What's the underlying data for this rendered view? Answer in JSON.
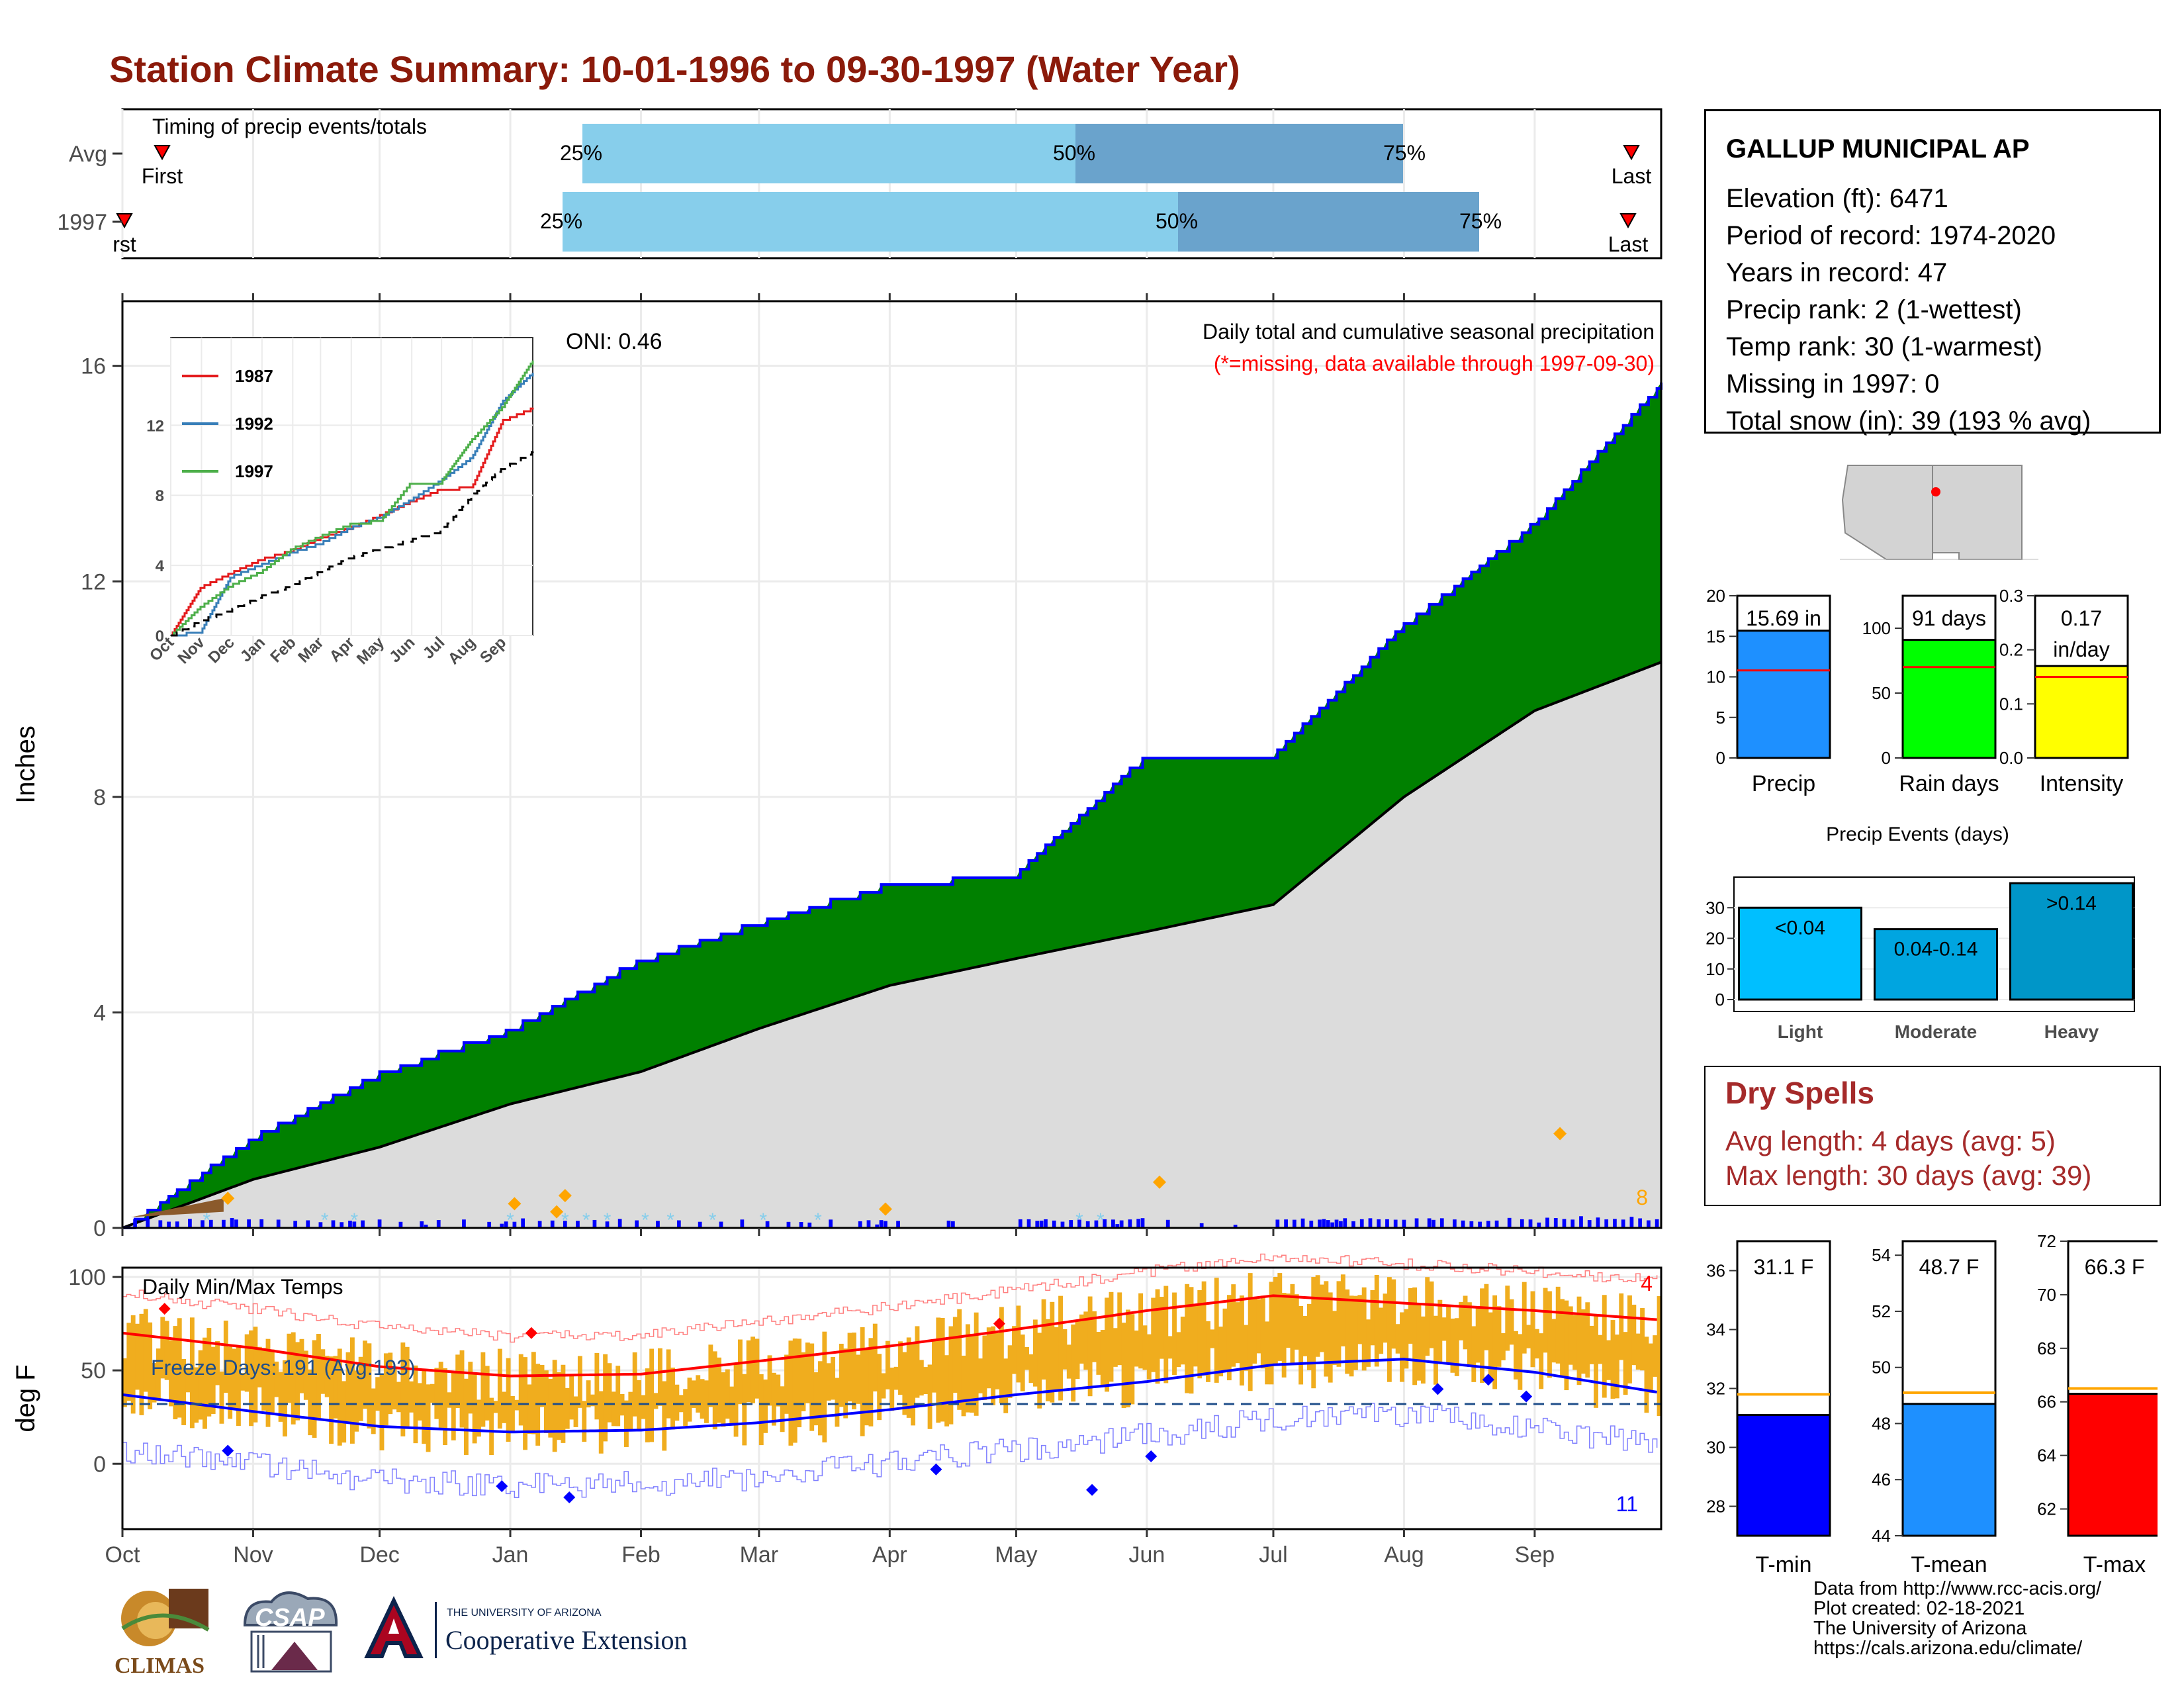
{
  "title": "Station Climate Summary: 10-01-1996 to 09-30-1997 (Water Year)",
  "colors": {
    "title": "#8b1a0a",
    "cum_fill": "#008000",
    "cum_line": "#0000ff",
    "avg_fill": "#dcdcdc",
    "bar_light": "#87ceeb",
    "bar_dark": "#6aa3cc",
    "precip_bar": "#1e90ff",
    "rain_bar": "#00ff00",
    "int_bar": "#ffff00",
    "tmin": "#0000ff",
    "tmean": "#1e90ff",
    "tmax": "#ff0000",
    "event_light": "#00bfff",
    "event_mod": "#00a5e0",
    "event_heavy": "#0096c8",
    "temp_bar": "#f0ad1e"
  },
  "timing": {
    "title": "Timing of precip events/totals",
    "rows": [
      {
        "label": "Avg",
        "first_label": "First",
        "last_label": "Last",
        "p25": "25%",
        "p50": "50%",
        "p75": "75%"
      },
      {
        "label": "1997",
        "first_label": "rst",
        "last_label": "Last",
        "p25": "25%",
        "p50": "50%",
        "p75": "75%"
      }
    ]
  },
  "main": {
    "ylabel": "Inches",
    "subtitle": "Daily total and cumulative seasonal precipitation",
    "missing_note": "(*=missing, data available through 1997-09-30)",
    "oni": "ONI: 0.46",
    "corner_count": "8",
    "yticks": [
      "0",
      "4",
      "8",
      "12",
      "16"
    ]
  },
  "inset": {
    "yticks": [
      "0",
      "4",
      "8",
      "12"
    ],
    "xticks": [
      "Oct",
      "Nov",
      "Dec",
      "Jan",
      "Feb",
      "Mar",
      "Apr",
      "May",
      "Jun",
      "Jul",
      "Aug",
      "Sep"
    ],
    "legend": [
      "1987",
      "1992",
      "1997"
    ]
  },
  "temps": {
    "ylabel": "deg F",
    "title": "Daily Min/Max Temps",
    "freeze": "Freeze Days: 191 (Avg:193)",
    "count_hot": "4",
    "count_cold": "11",
    "yticks": [
      "0",
      "50",
      "100"
    ]
  },
  "months": [
    "Oct",
    "Nov",
    "Dec",
    "Jan",
    "Feb",
    "Mar",
    "Apr",
    "May",
    "Jun",
    "Jul",
    "Aug",
    "Sep"
  ],
  "station": {
    "name": "GALLUP MUNICIPAL AP",
    "lines": [
      "Elevation (ft): 6471",
      "Period of record: 1974-2020",
      "Years in record: 47",
      "Precip rank: 2 (1-wettest)",
      "Temp rank: 30 (1-warmest)",
      "Missing in 1997: 0",
      "Total snow (in): 39 (193 % avg)"
    ]
  },
  "summary_bars": [
    {
      "label": "Precip",
      "value_text": "15.69 in",
      "value": 15.69,
      "avg": 10.8,
      "max": 20,
      "ticks": [
        "0",
        "5",
        "10",
        "15",
        "20"
      ]
    },
    {
      "label": "Rain days",
      "value_text": "91 days",
      "value": 91,
      "avg": 70,
      "max": 125,
      "ticks": [
        "0",
        "50",
        "100"
      ]
    },
    {
      "label": "Intensity",
      "value_text": "0.17 in/day",
      "value": 0.17,
      "avg": 0.15,
      "max": 0.3,
      "ticks": [
        "0.0",
        "0.1",
        "0.2",
        "0.3"
      ]
    }
  ],
  "events": {
    "title": "Precip Events (days)",
    "categories": [
      "Light",
      "Moderate",
      "Heavy"
    ],
    "labels": [
      "<0.04",
      "0.04-0.14",
      ">0.14"
    ],
    "values": [
      30,
      23,
      38
    ],
    "ticks": [
      "0",
      "10",
      "20",
      "30"
    ]
  },
  "dry_spells": {
    "title": "Dry Spells",
    "avg_line": "Avg length: 4 days (avg: 5)",
    "max_line": "Max length: 30 days (avg: 39)"
  },
  "temp_bars": [
    {
      "label": "T-min",
      "value_text": "31.1 F",
      "value": 31.1,
      "avg": 31.8,
      "min": 27,
      "max": 37,
      "ticks": [
        "28",
        "30",
        "32",
        "34",
        "36"
      ]
    },
    {
      "label": "T-mean",
      "value_text": "48.7 F",
      "value": 48.7,
      "avg": 49.1,
      "min": 44,
      "max": 54.5,
      "ticks": [
        "44",
        "46",
        "48",
        "50",
        "52",
        "54"
      ]
    },
    {
      "label": "T-max",
      "value_text": "66.3 F",
      "value": 66.3,
      "avg": 66.5,
      "min": 61,
      "max": 72,
      "ticks": [
        "62",
        "64",
        "66",
        "68",
        "70",
        "72"
      ]
    }
  ],
  "logos": {
    "climas": "CLIMAS",
    "csap": "CSAP",
    "ua_small": "THE UNIVERSITY OF ARIZONA",
    "ua_big": "Cooperative Extension"
  },
  "footer": [
    "Data from http://www.rcc-acis.org/",
    "Plot created: 02-18-2021",
    "The University of Arizona",
    "https://cals.arizona.edu/climate/"
  ],
  "chart_data": [
    {
      "type": "line",
      "title": "Daily total and cumulative seasonal precipitation",
      "ylabel": "Inches",
      "ylim": [
        0,
        17.2
      ],
      "x": [
        "Oct",
        "Nov",
        "Dec",
        "Jan",
        "Feb",
        "Mar",
        "Apr",
        "May",
        "Jun",
        "Jul",
        "Aug",
        "Sep",
        "Sep30"
      ],
      "series": [
        {
          "name": "1997",
          "values": [
            0,
            1.7,
            2.9,
            3.7,
            5.0,
            5.7,
            6.4,
            6.6,
            8.8,
            8.8,
            11.2,
            13.1,
            15.69
          ]
        },
        {
          "values": [
            0,
            0.9,
            1.5,
            2.3,
            2.9,
            3.7,
            4.5,
            5.0,
            5.5,
            6.0,
            8.0,
            9.6,
            10.5
          ]
        }
      ]
    },
    {
      "type": "line",
      "title": "",
      "ylim": [
        0,
        17
      ],
      "x": [
        "Oct",
        "Nov",
        "Dec",
        "Jan",
        "Feb",
        "Mar",
        "Apr",
        "May",
        "Jun",
        "Jul",
        "Aug",
        "Sep",
        "Sep30"
      ],
      "series": [
        {
          "name": "1987",
          "values": [
            0,
            2.8,
            3.6,
            4.4,
            4.9,
            5.6,
            6.2,
            6.9,
            7.7,
            8.4,
            8.5,
            12.3,
            13.0
          ]
        },
        {
          "name": "1992",
          "values": [
            0,
            0.3,
            3.4,
            4.1,
            4.8,
            5.3,
            6.2,
            6.8,
            7.8,
            8.9,
            10.2,
            13.4,
            15.0
          ]
        },
        {
          "name": "1997",
          "values": [
            0,
            1.7,
            2.9,
            3.7,
            5.0,
            5.7,
            6.4,
            6.6,
            8.8,
            8.8,
            11.2,
            13.1,
            15.69
          ]
        },
        {
          "values": [
            0,
            0.9,
            1.5,
            2.3,
            2.9,
            3.7,
            4.5,
            5.0,
            5.5,
            6.0,
            8.0,
            9.6,
            10.5
          ]
        }
      ]
    },
    {
      "type": "line",
      "title": "Daily Min/Max Temps",
      "ylabel": "deg F",
      "ylim": [
        -35,
        105
      ],
      "x": [
        "Oct",
        "Nov",
        "Dec",
        "Jan",
        "Feb",
        "Mar",
        "Apr",
        "May",
        "Jun",
        "Jul",
        "Aug",
        "Sep",
        "Sep30"
      ],
      "series": [
        {
          "values": [
            70,
            62,
            52,
            47,
            48,
            55,
            63,
            72,
            82,
            90,
            86,
            82,
            77
          ]
        },
        {
          "values": [
            37,
            28,
            20,
            17,
            18,
            22,
            29,
            37,
            44,
            53,
            56,
            49,
            38
          ]
        }
      ]
    },
    {
      "type": "bar",
      "categories": [
        "Precip",
        "Rain days",
        "Intensity"
      ],
      "values": [
        15.69,
        91,
        0.17
      ]
    },
    {
      "type": "bar",
      "title": "Precip Events (days)",
      "categories": [
        "Light",
        "Moderate",
        "Heavy"
      ],
      "values": [
        30,
        23,
        38
      ]
    },
    {
      "type": "bar",
      "categories": [
        "T-min",
        "T-mean",
        "T-max"
      ],
      "values": [
        31.1,
        48.7,
        66.3
      ]
    }
  ]
}
